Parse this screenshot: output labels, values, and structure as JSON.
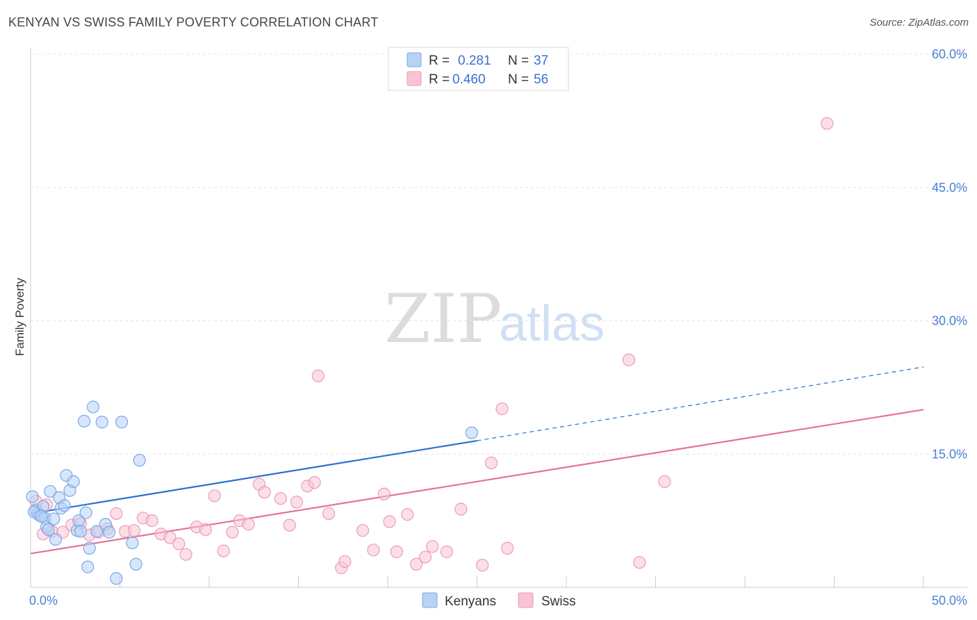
{
  "title": "KENYAN VS SWISS FAMILY POVERTY CORRELATION CHART",
  "source": "Source: ZipAtlas.com",
  "watermark": {
    "zip": "ZIP",
    "atlas": "atlas"
  },
  "colors": {
    "kenyans_fill": "#b7d2f5",
    "kenyans_stroke": "#7aa8e6",
    "kenyans_line": "#2b6fd0",
    "swiss_fill": "#f8c4d4",
    "swiss_stroke": "#ee9ab5",
    "swiss_line": "#e4719a",
    "axis_text": "#4a7fd4",
    "grid": "#e4e4e4"
  },
  "legend": {
    "rows": [
      {
        "r_label": "R =",
        "r_value": "0.281",
        "n_label": "N =",
        "n_value": "37"
      },
      {
        "r_label": "R =",
        "r_value": "0.460",
        "n_label": "N =",
        "n_value": "56"
      }
    ]
  },
  "chart_data": {
    "type": "scatter",
    "title": "KENYAN VS SWISS FAMILY POVERTY CORRELATION CHART",
    "ylabel": "Family Poverty",
    "xlabel": "",
    "xlim": [
      0,
      50
    ],
    "ylim": [
      0,
      60
    ],
    "x_tick_labels": [
      "0.0%",
      "50.0%"
    ],
    "y_ticks": [
      15,
      30,
      45,
      60
    ],
    "y_tick_labels": [
      "15.0%",
      "30.0%",
      "45.0%",
      "60.0%"
    ],
    "grid": true,
    "legend_position": "top-center",
    "series": [
      {
        "name": "Kenyans",
        "r": 0.281,
        "n": 37,
        "trend": {
          "x0": 0,
          "y0": 8.3,
          "x1": 25,
          "y1": 16.5,
          "dashed_to_x": 50,
          "dashed_to_y": 24.8
        },
        "points": [
          [
            0.1,
            10.2
          ],
          [
            0.3,
            8.7
          ],
          [
            0.4,
            8.3
          ],
          [
            0.5,
            8.1
          ],
          [
            0.7,
            9.1
          ],
          [
            0.8,
            7.8
          ],
          [
            0.9,
            6.8
          ],
          [
            1.0,
            6.5
          ],
          [
            1.1,
            10.8
          ],
          [
            1.3,
            7.7
          ],
          [
            1.4,
            5.4
          ],
          [
            1.6,
            10.1
          ],
          [
            1.7,
            8.9
          ],
          [
            1.9,
            9.2
          ],
          [
            2.0,
            12.6
          ],
          [
            2.2,
            10.9
          ],
          [
            2.4,
            11.9
          ],
          [
            2.6,
            6.4
          ],
          [
            2.7,
            7.5
          ],
          [
            2.8,
            6.3
          ],
          [
            3.0,
            18.7
          ],
          [
            3.1,
            8.4
          ],
          [
            3.2,
            2.3
          ],
          [
            3.3,
            4.4
          ],
          [
            3.5,
            20.3
          ],
          [
            3.7,
            6.3
          ],
          [
            4.0,
            18.6
          ],
          [
            4.2,
            7.1
          ],
          [
            4.4,
            6.2
          ],
          [
            4.8,
            1.0
          ],
          [
            5.1,
            18.6
          ],
          [
            5.7,
            5.0
          ],
          [
            5.9,
            2.6
          ],
          [
            6.1,
            14.3
          ],
          [
            0.2,
            8.5
          ],
          [
            0.6,
            8.0
          ],
          [
            24.7,
            17.4
          ]
        ]
      },
      {
        "name": "Swiss",
        "r": 0.46,
        "n": 56,
        "trend": {
          "x0": 0,
          "y0": 3.8,
          "x1": 50,
          "y1": 20.0
        },
        "points": [
          [
            0.3,
            9.7
          ],
          [
            0.7,
            6.0
          ],
          [
            0.9,
            9.3
          ],
          [
            1.2,
            6.3
          ],
          [
            1.8,
            6.2
          ],
          [
            2.3,
            7.0
          ],
          [
            2.8,
            7.2
          ],
          [
            3.3,
            5.9
          ],
          [
            3.8,
            6.2
          ],
          [
            4.3,
            6.6
          ],
          [
            4.8,
            8.3
          ],
          [
            5.3,
            6.3
          ],
          [
            5.8,
            6.4
          ],
          [
            6.3,
            7.8
          ],
          [
            6.8,
            7.5
          ],
          [
            7.3,
            6.0
          ],
          [
            7.8,
            5.6
          ],
          [
            8.3,
            4.9
          ],
          [
            8.7,
            3.7
          ],
          [
            9.3,
            6.8
          ],
          [
            9.8,
            6.5
          ],
          [
            10.3,
            10.3
          ],
          [
            10.8,
            4.1
          ],
          [
            11.3,
            6.2
          ],
          [
            11.7,
            7.5
          ],
          [
            12.2,
            7.1
          ],
          [
            12.8,
            11.6
          ],
          [
            13.1,
            10.7
          ],
          [
            14.0,
            10.0
          ],
          [
            14.5,
            7.0
          ],
          [
            14.9,
            9.6
          ],
          [
            15.5,
            11.4
          ],
          [
            15.9,
            11.8
          ],
          [
            16.1,
            23.8
          ],
          [
            16.7,
            8.3
          ],
          [
            17.4,
            2.2
          ],
          [
            17.6,
            2.9
          ],
          [
            18.6,
            6.4
          ],
          [
            19.2,
            4.2
          ],
          [
            19.8,
            10.5
          ],
          [
            20.1,
            7.4
          ],
          [
            20.5,
            4.0
          ],
          [
            21.1,
            8.2
          ],
          [
            21.6,
            2.6
          ],
          [
            22.1,
            3.4
          ],
          [
            22.5,
            4.6
          ],
          [
            23.3,
            4.0
          ],
          [
            24.1,
            8.8
          ],
          [
            25.3,
            2.5
          ],
          [
            25.8,
            14.0
          ],
          [
            26.4,
            20.1
          ],
          [
            26.7,
            4.4
          ],
          [
            33.5,
            25.6
          ],
          [
            34.1,
            2.8
          ],
          [
            35.5,
            11.9
          ],
          [
            44.6,
            52.2
          ]
        ]
      }
    ]
  },
  "bottom_legend": [
    {
      "label": "Kenyans"
    },
    {
      "label": "Swiss"
    }
  ]
}
